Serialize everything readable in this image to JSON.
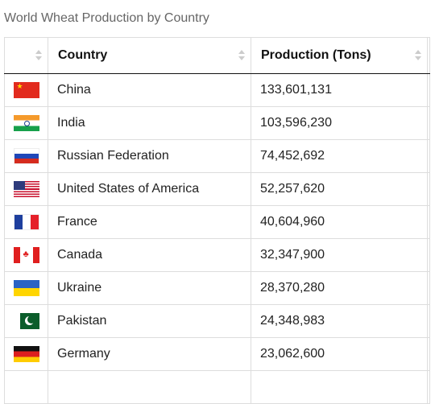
{
  "caption": "World Wheat Production by Country",
  "columns": {
    "flag": "",
    "country": "Country",
    "production": "Production (Tons)",
    "extra": ""
  },
  "rows": [
    {
      "country": "China",
      "production": "133,601,131",
      "flag": "china-flag-icon"
    },
    {
      "country": "India",
      "production": "103,596,230",
      "flag": "india-flag-icon"
    },
    {
      "country": "Russian Federation",
      "production": "74,452,692",
      "flag": "russia-flag-icon"
    },
    {
      "country": "United States of America",
      "production": "52,257,620",
      "flag": "usa-flag-icon"
    },
    {
      "country": "France",
      "production": "40,604,960",
      "flag": "france-flag-icon"
    },
    {
      "country": "Canada",
      "production": "32,347,900",
      "flag": "canada-flag-icon"
    },
    {
      "country": "Ukraine",
      "production": "28,370,280",
      "flag": "ukraine-flag-icon"
    },
    {
      "country": "Pakistan",
      "production": "24,348,983",
      "flag": "pakistan-flag-icon"
    },
    {
      "country": "Germany",
      "production": "23,062,600",
      "flag": "germany-flag-icon"
    }
  ],
  "colors": {
    "border": "#dddddd",
    "header_rule": "#111111",
    "caption": "#666666"
  }
}
